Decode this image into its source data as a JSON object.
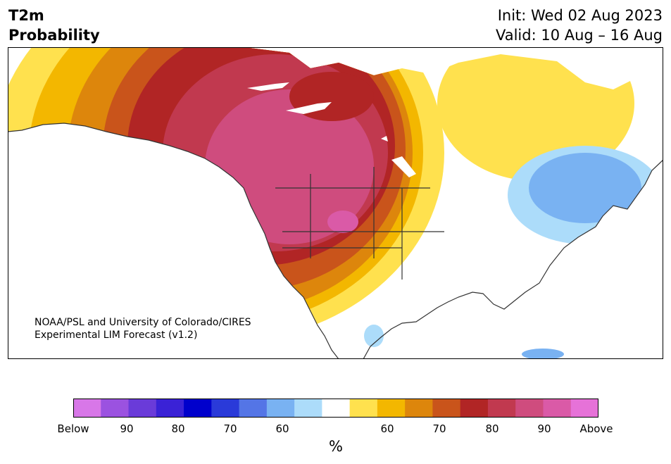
{
  "title": {
    "left_line1": "T2m",
    "left_line2": "Probability",
    "right_line1": "Init: Wed 02 Aug 2023",
    "right_line2": "Valid: 10 Aug – 16 Aug"
  },
  "credit": {
    "line1": "NOAA/PSL and University of Colorado/CIRES",
    "line2": "Experimental LIM Forecast (v1.2)"
  },
  "colorbar": {
    "unit": "%",
    "ticks": [
      "Below",
      "90",
      "80",
      "70",
      "60",
      "60",
      "70",
      "80",
      "90",
      "Above"
    ],
    "colors": [
      "#d877e8",
      "#9b52e0",
      "#6a3bd9",
      "#3a22d6",
      "#0000cc",
      "#2a3ad9",
      "#5475e6",
      "#79b2f2",
      "#acdcfa",
      "#ffffff",
      "#ffe14e",
      "#f3b700",
      "#dd860c",
      "#c9541b",
      "#b12525",
      "#c1394f",
      "#cf4c7e",
      "#da5aa7",
      "#e672d8"
    ]
  },
  "map_legend": {
    "colors": {
      "above_60": "#ffe14e",
      "above_65": "#f3b700",
      "above_70": "#dd860c",
      "above_75": "#c9541b",
      "above_80": "#b12525",
      "above_85": "#c1394f",
      "above_90": "#cf4c7e",
      "above_95": "#da5aa7",
      "below_60": "#acdcfa",
      "below_65": "#79b2f2",
      "below_70": "#5475e6"
    }
  }
}
